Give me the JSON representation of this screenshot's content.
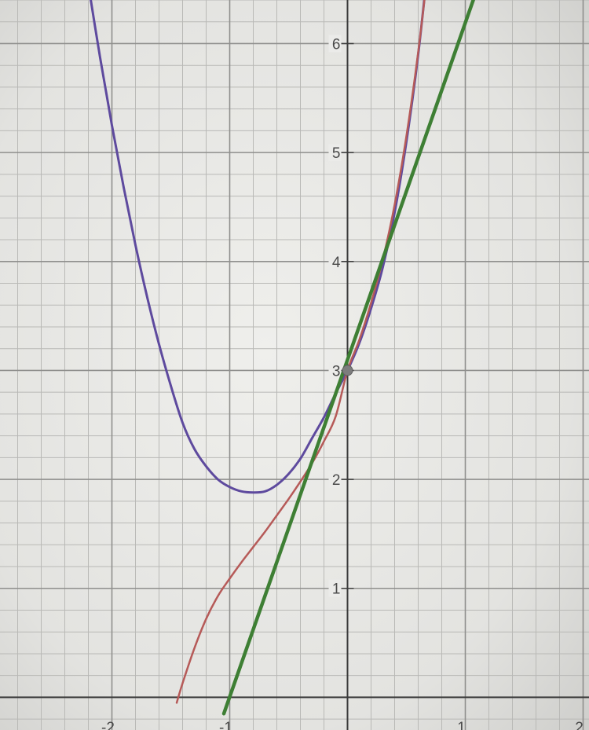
{
  "chart_data": {
    "type": "line",
    "title": "",
    "xlabel": "",
    "ylabel": "",
    "xlim": [
      -2.95,
      2.05
    ],
    "ylim": [
      -0.3,
      6.4
    ],
    "grid": true,
    "x_major_step": 1,
    "y_major_step": 1,
    "minor_divisions": 5,
    "x_ticks": [
      {
        "value": -2,
        "label": "-2"
      },
      {
        "value": -1,
        "label": "-1"
      },
      {
        "value": 1,
        "label": "1"
      },
      {
        "value": 2,
        "label": "2"
      }
    ],
    "y_ticks": [
      {
        "value": 1,
        "label": "1"
      },
      {
        "value": 2,
        "label": "2"
      },
      {
        "value": 3,
        "label": "3"
      },
      {
        "value": 4,
        "label": "4"
      },
      {
        "value": 5,
        "label": "5"
      },
      {
        "value": 6,
        "label": "6"
      }
    ],
    "series": [
      {
        "color": "#5e4a9e",
        "width": 3,
        "x": [
          -2.2,
          -2.1,
          -2.0,
          -1.9,
          -1.8,
          -1.7,
          -1.6,
          -1.5,
          -1.4,
          -1.3,
          -1.2,
          -1.1,
          -1.0,
          -0.9,
          -0.8,
          -0.7,
          -0.6,
          -0.5,
          -0.4,
          -0.3,
          -0.2,
          -0.1,
          0.0,
          0.1,
          0.2,
          0.3,
          0.4,
          0.5,
          0.6,
          0.7
        ],
        "y": [
          6.54,
          5.87,
          5.25,
          4.68,
          4.15,
          3.67,
          3.24,
          2.86,
          2.52,
          2.28,
          2.12,
          2.0,
          1.93,
          1.89,
          1.88,
          1.89,
          1.95,
          2.05,
          2.19,
          2.38,
          2.57,
          2.79,
          3.0,
          3.25,
          3.57,
          3.95,
          4.45,
          5.1,
          5.9,
          6.9
        ]
      },
      {
        "color": "#b65a58",
        "width": 2.5,
        "x": [
          -1.45,
          -1.4,
          -1.3,
          -1.2,
          -1.1,
          -1.0,
          -0.9,
          -0.8,
          -0.7,
          -0.6,
          -0.5,
          -0.4,
          -0.3,
          -0.2,
          -0.1,
          0.0,
          0.1,
          0.2,
          0.3,
          0.4,
          0.5,
          0.6,
          0.7
        ],
        "y": [
          -0.05,
          0.13,
          0.45,
          0.72,
          0.93,
          1.09,
          1.24,
          1.38,
          1.52,
          1.67,
          1.82,
          1.98,
          2.15,
          2.35,
          2.58,
          3.0,
          3.28,
          3.62,
          4.02,
          4.52,
          5.15,
          5.92,
          6.85
        ]
      },
      {
        "color": "#3e7f34",
        "width": 4.5,
        "x": [
          -1.05,
          1.1
        ],
        "y": [
          -0.15,
          6.5
        ]
      }
    ],
    "points": [
      {
        "x": 0,
        "y": 3,
        "color": "#7d7d7d"
      }
    ]
  }
}
